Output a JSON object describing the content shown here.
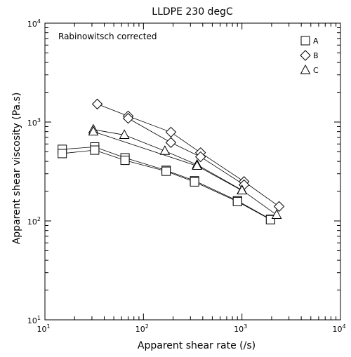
{
  "chart_data": {
    "type": "scatter",
    "title": "LLDPE 230 degC",
    "annotation": "Rabinowitsch corrected",
    "xlabel": "Apparent shear rate (/s)",
    "ylabel": "Apparent shear viscosity (Pa.s)",
    "xscale": "log",
    "yscale": "log",
    "xlim": [
      10,
      10000
    ],
    "ylim": [
      10,
      10000
    ],
    "x_tick_labels": [
      {
        "base": "10",
        "exp": "1"
      },
      {
        "base": "10",
        "exp": "2"
      },
      {
        "base": "10",
        "exp": "3"
      },
      {
        "base": "10",
        "exp": "4"
      }
    ],
    "y_tick_labels": [
      {
        "base": "10",
        "exp": "1"
      },
      {
        "base": "10",
        "exp": "2"
      },
      {
        "base": "10",
        "exp": "3"
      },
      {
        "base": "10",
        "exp": "4"
      }
    ],
    "grid": false,
    "legend_position": "top-right",
    "series": [
      {
        "name": "A",
        "marker": "square",
        "lines": [
          [
            [
              15,
              530
            ],
            [
              32,
              560
            ],
            [
              65,
              435
            ],
            [
              170,
              325
            ],
            [
              330,
              255
            ],
            [
              900,
              160
            ],
            [
              1950,
              104
            ]
          ],
          [
            [
              15,
              480
            ],
            [
              32,
              520
            ],
            [
              65,
              410
            ],
            [
              170,
              318
            ],
            [
              330,
              248
            ],
            [
              900,
              157
            ],
            [
              1950,
              103
            ]
          ]
        ]
      },
      {
        "name": "B",
        "marker": "diamond",
        "lines": [
          [
            [
              34,
              1520
            ],
            [
              70,
              1150
            ],
            [
              190,
              790
            ],
            [
              380,
              490
            ],
            [
              1050,
              250
            ],
            [
              2380,
              140
            ]
          ],
          [
            [
              70,
              1090
            ],
            [
              190,
              620
            ],
            [
              380,
              445
            ],
            [
              1050,
              232
            ]
          ]
        ]
      },
      {
        "name": "C",
        "marker": "triangle",
        "lines": [
          [
            [
              31,
              840
            ],
            [
              64,
              740
            ],
            [
              165,
              510
            ],
            [
              350,
              370
            ],
            [
              1000,
              205
            ],
            [
              2250,
              115
            ]
          ],
          [
            [
              31,
              800
            ],
            [
              350,
              360
            ],
            [
              1000,
              203
            ]
          ]
        ]
      }
    ]
  }
}
